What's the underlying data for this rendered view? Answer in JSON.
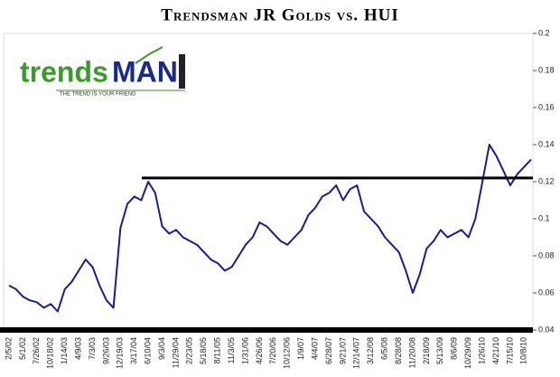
{
  "chart_data": {
    "type": "line",
    "title": "Trendsman JR Golds vs. HUI",
    "categories": [
      "2/5/02",
      null,
      "5/1/02",
      null,
      "7/26/02",
      null,
      "10/18/02",
      null,
      "1/14/03",
      null,
      "4/9/03",
      null,
      "7/3/03",
      null,
      "9/26/03",
      null,
      "12/19/03",
      null,
      "3/17/04",
      null,
      "6/10/04",
      null,
      "9/3/04",
      null,
      "11/29/04",
      null,
      "2/23/05",
      null,
      "5/18/05",
      null,
      "8/11/05",
      null,
      "11/3/05",
      null,
      "1/31/06",
      null,
      "4/26/06",
      null,
      "7/20/06",
      null,
      "10/12/06",
      null,
      "1/9/07",
      null,
      "4/4/07",
      null,
      "6/28/07",
      null,
      "9/21/07",
      null,
      "12/14/07",
      null,
      "3/12/08",
      null,
      "6/5/08",
      null,
      "8/28/08",
      null,
      "11/20/08",
      null,
      "2/18/09",
      null,
      "5/13/09",
      null,
      "8/6/09",
      null,
      "10/29/09",
      null,
      "1/26/10",
      null,
      "4/21/10",
      null,
      "7/15/10",
      null,
      "10/8/10",
      null
    ],
    "series": [
      {
        "name": "JR Golds vs. HUI",
        "color": "#1a1a9a",
        "values": [
          0.064,
          0.062,
          0.058,
          0.056,
          0.055,
          0.052,
          0.054,
          0.05,
          0.062,
          0.066,
          0.072,
          0.078,
          0.074,
          0.064,
          0.056,
          0.052,
          0.095,
          0.108,
          0.112,
          0.11,
          0.12,
          0.114,
          0.096,
          0.092,
          0.094,
          0.09,
          0.088,
          0.086,
          0.082,
          0.078,
          0.076,
          0.072,
          0.074,
          0.08,
          0.086,
          0.09,
          0.098,
          0.096,
          0.092,
          0.088,
          0.086,
          0.09,
          0.094,
          0.102,
          0.106,
          0.112,
          0.114,
          0.118,
          0.11,
          0.116,
          0.118,
          0.104,
          0.1,
          0.096,
          0.09,
          0.086,
          0.082,
          0.072,
          0.06,
          0.07,
          0.084,
          0.088,
          0.094,
          0.09,
          0.092,
          0.094,
          0.09,
          0.1,
          0.12,
          0.14,
          0.134,
          0.126,
          0.118,
          0.124,
          0.128,
          0.132
        ]
      }
    ],
    "reference_line": 0.122,
    "ylim": [
      0.04,
      0.2
    ],
    "yticks": [
      0.04,
      0.06,
      0.08,
      0.1,
      0.12,
      0.14,
      0.16,
      0.18,
      0.2
    ],
    "y_axis_side": "right"
  },
  "logo": {
    "word1": "trends",
    "word2": "MAN",
    "tagline": "THE TREND IS YOUR FRIEND"
  }
}
